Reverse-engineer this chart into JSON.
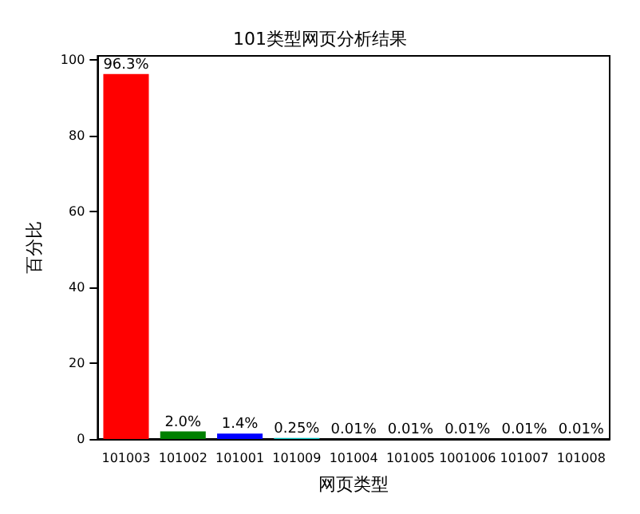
{
  "chart_data": {
    "type": "bar",
    "title": "101类型网页分析结果",
    "xlabel": "网页类型",
    "ylabel": "百分比",
    "categories": [
      "101003",
      "101002",
      "101001",
      "101009",
      "101004",
      "101005",
      "1001006",
      "101007",
      "101008"
    ],
    "values": [
      96.3,
      2.0,
      1.4,
      0.25,
      0.01,
      0.01,
      0.01,
      0.01,
      0.01
    ],
    "value_labels": [
      "96.3%",
      "2.0%",
      "1.4%",
      "0.25%",
      "0.01%",
      "0.01%",
      "0.01%",
      "0.01%",
      "0.01%"
    ],
    "colors": [
      "#ff0000",
      "#008000",
      "#0000ff",
      "#00bfbf",
      "#bf00bf",
      "#bfbf00",
      "#000000",
      "#ff0000",
      "#008000"
    ],
    "ylim": [
      0,
      101.1
    ],
    "yticks": [
      0,
      20,
      40,
      60,
      80,
      100
    ],
    "grid": false
  }
}
